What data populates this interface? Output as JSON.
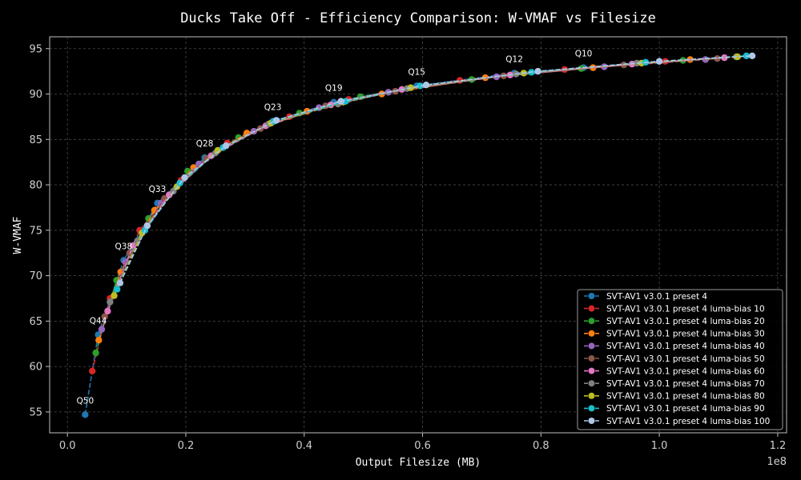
{
  "chart_data": {
    "type": "line",
    "title": "Ducks Take Off - Efficiency Comparison: W-VMAF vs Filesize",
    "xlabel": "Output Filesize (MB)",
    "ylabel": "W-VMAF",
    "x_offset_label": "1e8",
    "xlim": [
      -0.03,
      1.215
    ],
    "ylim": [
      52.7,
      96.3
    ],
    "xticks": [
      0.0,
      0.2,
      0.4,
      0.6,
      0.8,
      1.0,
      1.2
    ],
    "xtick_labels": [
      "0.0",
      "0.2",
      "0.4",
      "0.6",
      "0.8",
      "1.0",
      "1.2"
    ],
    "yticks": [
      55,
      60,
      65,
      70,
      75,
      80,
      85,
      90,
      95
    ],
    "ytick_labels": [
      "55",
      "60",
      "65",
      "70",
      "75",
      "80",
      "85",
      "90",
      "95"
    ],
    "grid": true,
    "legend_position": "lower-right",
    "annotations": [
      {
        "text": "Q50",
        "x": 0.03,
        "y": 54.7
      },
      {
        "text": "Q44",
        "x": 0.052,
        "y": 63.5
      },
      {
        "text": "Q38",
        "x": 0.095,
        "y": 71.7
      },
      {
        "text": "Q33",
        "x": 0.152,
        "y": 78.0
      },
      {
        "text": "Q28",
        "x": 0.232,
        "y": 83.0
      },
      {
        "text": "Q23",
        "x": 0.347,
        "y": 87.0
      },
      {
        "text": "Q19",
        "x": 0.45,
        "y": 89.1
      },
      {
        "text": "Q15",
        "x": 0.59,
        "y": 90.9
      },
      {
        "text": "Q12",
        "x": 0.755,
        "y": 92.3
      },
      {
        "text": "Q10",
        "x": 0.872,
        "y": 92.9
      }
    ],
    "series": [
      {
        "name": "SVT-AV1 v3.0.1 preset 4",
        "color": "#1f77b4",
        "x": [
          0.03,
          0.052,
          0.095,
          0.152,
          0.232,
          0.347,
          0.45,
          0.59,
          0.755,
          0.872,
          1.0
        ],
        "y": [
          54.7,
          63.5,
          71.7,
          78.0,
          83.0,
          87.0,
          89.1,
          90.9,
          92.3,
          92.9,
          93.6
        ]
      },
      {
        "name": "SVT-AV1 v3.0.1 preset 4 luma-bias 10",
        "color": "#d62728",
        "x": [
          0.042,
          0.072,
          0.122,
          0.192,
          0.27,
          0.375,
          0.475,
          0.663,
          0.84,
          1.01
        ],
        "y": [
          59.5,
          67.5,
          75.0,
          80.5,
          84.6,
          87.5,
          89.4,
          91.5,
          92.7,
          93.6
        ]
      },
      {
        "name": "SVT-AV1 v3.0.1 preset 4 luma-bias 20",
        "color": "#2ca02c",
        "x": [
          0.048,
          0.083,
          0.137,
          0.203,
          0.289,
          0.392,
          0.495,
          0.683,
          0.868,
          1.04
        ],
        "y": [
          61.5,
          69.5,
          76.3,
          81.5,
          85.2,
          87.9,
          89.7,
          91.6,
          92.8,
          93.7
        ]
      },
      {
        "name": "SVT-AV1 v3.0.1 preset 4 luma-bias 30",
        "color": "#ff7f0e",
        "x": [
          0.053,
          0.09,
          0.147,
          0.213,
          0.303,
          0.405,
          0.531,
          0.706,
          0.888,
          1.052
        ],
        "y": [
          62.9,
          70.4,
          77.2,
          81.9,
          85.7,
          88.1,
          90.0,
          91.8,
          92.9,
          93.8
        ]
      },
      {
        "name": "SVT-AV1 v3.0.1 preset 4 luma-bias 40",
        "color": "#9467bd",
        "x": [
          0.058,
          0.098,
          0.158,
          0.222,
          0.315,
          0.425,
          0.542,
          0.725,
          0.907,
          1.078
        ],
        "y": [
          64.1,
          71.5,
          78.0,
          82.3,
          85.9,
          88.5,
          90.2,
          91.9,
          93.0,
          93.8
        ]
      },
      {
        "name": "SVT-AV1 v3.0.1 preset 4 luma-bias 50",
        "color": "#8c564b",
        "x": [
          0.063,
          0.105,
          0.164,
          0.235,
          0.326,
          0.436,
          0.554,
          0.737,
          0.94,
          1.098
        ],
        "y": [
          65.5,
          72.5,
          78.5,
          82.9,
          86.2,
          88.7,
          90.3,
          92.0,
          93.2,
          93.9
        ]
      },
      {
        "name": "SVT-AV1 v3.0.1 preset 4 luma-bias 60",
        "color": "#e377c2",
        "x": [
          0.068,
          0.111,
          0.172,
          0.243,
          0.335,
          0.445,
          0.565,
          0.748,
          0.954,
          1.11
        ],
        "y": [
          66.1,
          73.3,
          78.9,
          83.2,
          86.5,
          88.8,
          90.5,
          92.1,
          93.3,
          94.0
        ]
      },
      {
        "name": "SVT-AV1 v3.0.1 preset 4 luma-bias 70",
        "color": "#7f7f7f",
        "x": [
          0.072,
          0.118,
          0.179,
          0.25,
          0.34,
          0.457,
          0.574,
          0.758,
          0.962,
          1.13
        ],
        "y": [
          67.1,
          73.8,
          79.3,
          83.5,
          86.7,
          88.9,
          90.6,
          92.2,
          93.4,
          94.1
        ]
      },
      {
        "name": "SVT-AV1 v3.0.1 preset 4 luma-bias 80",
        "color": "#bcbd22",
        "x": [
          0.079,
          0.126,
          0.185,
          0.254,
          0.344,
          0.466,
          0.58,
          0.771,
          0.97,
          1.132
        ],
        "y": [
          67.8,
          74.7,
          79.8,
          83.8,
          86.8,
          89.1,
          90.7,
          92.3,
          93.4,
          94.1
        ]
      },
      {
        "name": "SVT-AV1 v3.0.1 preset 4 luma-bias 90",
        "color": "#17becf",
        "x": [
          0.084,
          0.131,
          0.19,
          0.263,
          0.349,
          0.47,
          0.596,
          0.784,
          0.977,
          1.147
        ],
        "y": [
          68.5,
          75.0,
          80.2,
          84.1,
          87.0,
          89.2,
          90.9,
          92.4,
          93.5,
          94.2
        ]
      },
      {
        "name": "SVT-AV1 v3.0.1 preset 4 luma-bias 100",
        "color": "#aec7e8",
        "x": [
          0.089,
          0.135,
          0.198,
          0.268,
          0.353,
          0.462,
          0.606,
          0.795,
          1.0,
          1.157
        ],
        "y": [
          69.2,
          75.5,
          80.8,
          84.3,
          87.1,
          89.2,
          91.0,
          92.5,
          93.6,
          94.2
        ]
      }
    ]
  }
}
